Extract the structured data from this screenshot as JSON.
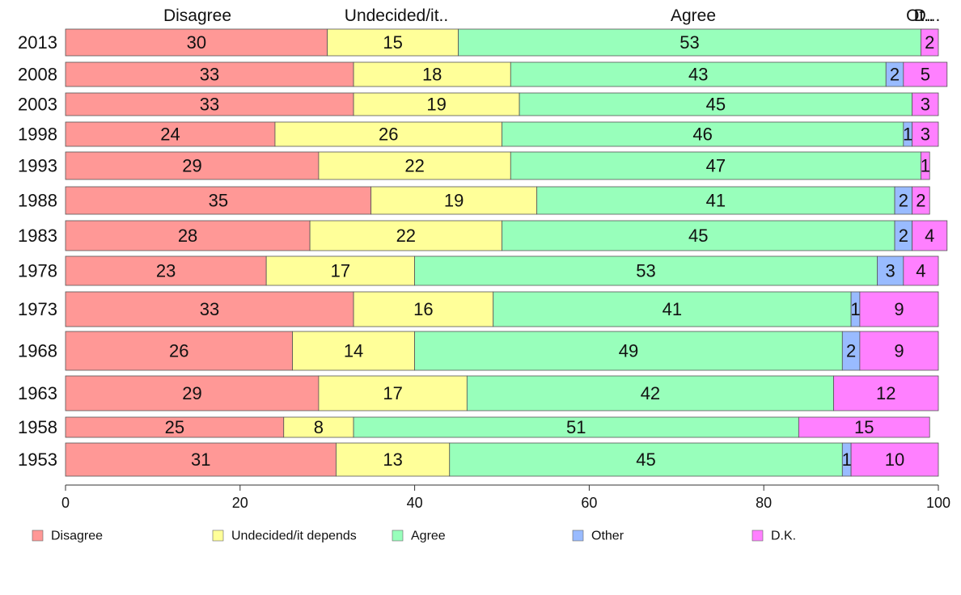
{
  "chart_data": {
    "type": "bar",
    "orientation": "horizontal",
    "stacked": true,
    "categories": [
      "2013",
      "2008",
      "2003",
      "1998",
      "1993",
      "1988",
      "1983",
      "1978",
      "1973",
      "1968",
      "1963",
      "1958",
      "1953"
    ],
    "series": [
      {
        "name": "Disagree",
        "color": "#ff9896",
        "values": [
          30,
          33,
          33,
          24,
          29,
          35,
          28,
          23,
          33,
          26,
          29,
          25,
          31
        ]
      },
      {
        "name": "Undecided/it depends",
        "color": "#ffff99",
        "values": [
          15,
          18,
          19,
          26,
          22,
          19,
          22,
          17,
          16,
          14,
          17,
          8,
          13
        ]
      },
      {
        "name": "Agree",
        "color": "#98ffbb",
        "values": [
          53,
          43,
          45,
          46,
          47,
          41,
          45,
          53,
          41,
          49,
          42,
          51,
          45
        ]
      },
      {
        "name": "Other",
        "color": "#99bbff",
        "values": [
          0,
          2,
          0,
          1,
          0,
          2,
          2,
          3,
          1,
          2,
          0,
          0,
          1
        ]
      },
      {
        "name": "D.K.",
        "color": "#ff80ff",
        "values": [
          2,
          5,
          3,
          3,
          1,
          2,
          4,
          4,
          9,
          9,
          12,
          15,
          10
        ]
      }
    ],
    "column_headers": [
      "Disagree",
      "Undecided/it..",
      "Agree",
      "Ot..",
      "D..."
    ],
    "x_ticks": [
      0,
      20,
      40,
      60,
      80,
      100
    ],
    "xlim": [
      0,
      100
    ],
    "legend_position": "bottom",
    "grid": false
  }
}
